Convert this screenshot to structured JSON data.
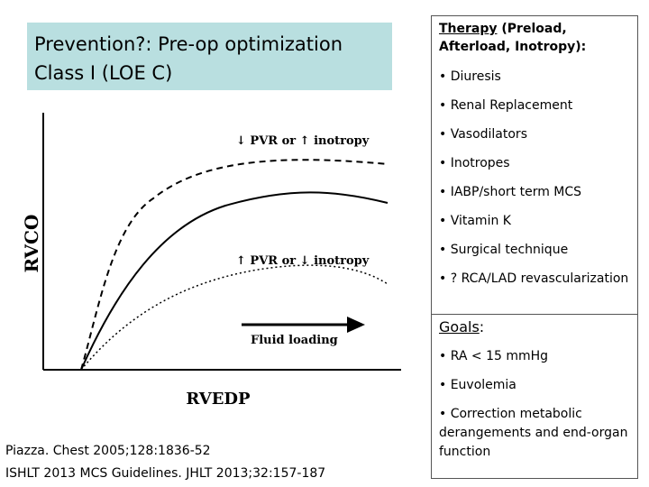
{
  "title": {
    "line1": "Prevention?: Pre-op optimization",
    "line2": "Class I (LOE C)"
  },
  "chart": {
    "y_label": "RVCO",
    "x_label": "RVEDP",
    "upper_curve_label": "↓ PVR or ↑ inotropy",
    "lower_curve_label": "↑ PVR or ↓ inotropy",
    "arrow_label": "Fluid loading"
  },
  "therapy": {
    "heading_underlined": "Therapy",
    "heading_rest": " (Preload, Afterload, Inotropy):",
    "items": [
      "• Diuresis",
      "• Renal Replacement",
      "• Vasodilators",
      "• Inotropes",
      "• IABP/short term MCS",
      "• Vitamin K",
      "• Surgical technique",
      "• ? RCA/LAD revascularization"
    ]
  },
  "goals": {
    "heading_underlined": "Goals",
    "heading_rest": ":",
    "items": [
      "• RA < 15 mmHg",
      "• Euvolemia",
      "• Correction metabolic derangements and end-organ function"
    ]
  },
  "citations": [
    "Piazza. Chest 2005;128:1836-52",
    "ISHLT 2013 MCS Guidelines. JHLT 2013;32:157-187"
  ]
}
